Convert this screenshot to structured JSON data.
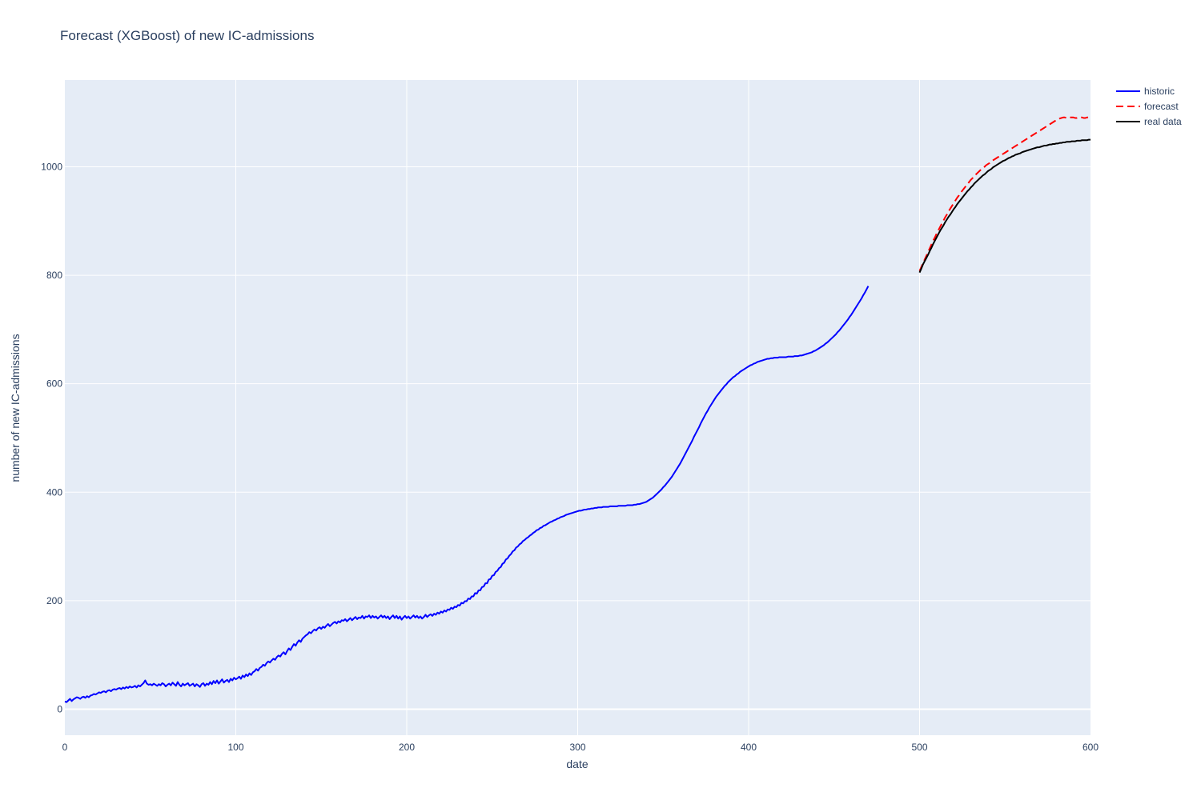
{
  "chart_data": {
    "type": "line",
    "title": "Forecast (XGBoost) of new IC-admissions",
    "xlabel": "date",
    "ylabel": "number of new IC-admissions",
    "xlim": [
      0,
      600
    ],
    "ylim": [
      -48,
      1160
    ],
    "x_ticks": [
      0,
      100,
      200,
      300,
      400,
      500,
      600
    ],
    "y_ticks": [
      0,
      200,
      400,
      600,
      800,
      1000
    ],
    "grid": true,
    "legend_position": "top-right",
    "colors": {
      "plot_bg": "#e5ecf6",
      "grid": "#ffffff",
      "text": "#2a3f5f"
    },
    "series": [
      {
        "name": "historic",
        "color": "#0000ff",
        "dash": "solid",
        "x_start": 0,
        "x_step": 1,
        "values": [
          14,
          13,
          16,
          19,
          15,
          18,
          20,
          22,
          21,
          19,
          22,
          23,
          21,
          24,
          22,
          25,
          26,
          28,
          27,
          29,
          31,
          30,
          32,
          33,
          31,
          34,
          35,
          33,
          36,
          37,
          36,
          38,
          39,
          37,
          40,
          38,
          41,
          39,
          42,
          40,
          41,
          43,
          40,
          44,
          42,
          45,
          48,
          53,
          47,
          45,
          46,
          44,
          47,
          45,
          43,
          46,
          44,
          48,
          46,
          42,
          45,
          47,
          44,
          49,
          46,
          43,
          50,
          45,
          42,
          47,
          44,
          46,
          48,
          43,
          45,
          47,
          42,
          46,
          44,
          41,
          46,
          48,
          43,
          47,
          45,
          50,
          46,
          52,
          48,
          53,
          47,
          51,
          55,
          49,
          52,
          54,
          50,
          56,
          53,
          58,
          55,
          57,
          60,
          56,
          62,
          59,
          64,
          61,
          66,
          63,
          68,
          70,
          74,
          71,
          76,
          78,
          82,
          80,
          85,
          88,
          86,
          90,
          93,
          91,
          96,
          99,
          97,
          102,
          105,
          101,
          107,
          112,
          109,
          115,
          120,
          117,
          123,
          127,
          124,
          130,
          133,
          136,
          138,
          142,
          140,
          144,
          147,
          145,
          149,
          151,
          148,
          152,
          150,
          154,
          157,
          153,
          156,
          159,
          161,
          158,
          162,
          160,
          164,
          163,
          166,
          162,
          165,
          168,
          164,
          167,
          170,
          166,
          169,
          168,
          172,
          167,
          171,
          170,
          173,
          168,
          172,
          169,
          171,
          167,
          170,
          173,
          169,
          172,
          168,
          171,
          166,
          170,
          173,
          168,
          172,
          167,
          171,
          165,
          169,
          172,
          168,
          171,
          167,
          170,
          173,
          169,
          172,
          168,
          171,
          167,
          170,
          174,
          170,
          173,
          175,
          172,
          176,
          174,
          178,
          176,
          180,
          178,
          182,
          180,
          184,
          183,
          187,
          185,
          189,
          188,
          192,
          191,
          196,
          195,
          199,
          199,
          204,
          203,
          208,
          208,
          214,
          213,
          219,
          219,
          225,
          226,
          232,
          232,
          239,
          240,
          246,
          247,
          253,
          255,
          260,
          262,
          268,
          270,
          276,
          278,
          283,
          286,
          291,
          293,
          298,
          300,
          304,
          306,
          310,
          312,
          315,
          317,
          320,
          322,
          325,
          327,
          330,
          331,
          334,
          335,
          338,
          339,
          341,
          343,
          345,
          346,
          348,
          349,
          351,
          352,
          354,
          355,
          356,
          358,
          359,
          360,
          361,
          362,
          363,
          364,
          365,
          366,
          366,
          367,
          368,
          368,
          369,
          369,
          370,
          370,
          371,
          371,
          372,
          372,
          372,
          373,
          373,
          373,
          373,
          374,
          374,
          374,
          374,
          374,
          375,
          375,
          375,
          375,
          375,
          376,
          376,
          376,
          376,
          377,
          377,
          378,
          378,
          379,
          380,
          381,
          382,
          384,
          386,
          388,
          390,
          393,
          396,
          399,
          402,
          405,
          409,
          412,
          416,
          420,
          424,
          428,
          433,
          438,
          443,
          448,
          453,
          459,
          465,
          471,
          477,
          483,
          489,
          495,
          502,
          508,
          514,
          520,
          527,
          533,
          539,
          545,
          550,
          556,
          561,
          566,
          571,
          576,
          580,
          584,
          588,
          592,
          596,
          599,
          603,
          606,
          609,
          612,
          614,
          617,
          619,
          622,
          624,
          626,
          628,
          630,
          632,
          634,
          635,
          637,
          638,
          640,
          641,
          642,
          643,
          644,
          645,
          646,
          646,
          647,
          647,
          648,
          648,
          648,
          649,
          649,
          649,
          649,
          649,
          650,
          650,
          650,
          650,
          651,
          651,
          651,
          652,
          652,
          653,
          654,
          655,
          656,
          657,
          658,
          660,
          661,
          663,
          665,
          667,
          669,
          671,
          674,
          676,
          679,
          682,
          685,
          688,
          691,
          695,
          698,
          702,
          706,
          710,
          714,
          718,
          723,
          727,
          732,
          737,
          742,
          747,
          752,
          757,
          763,
          768,
          774,
          780
        ]
      },
      {
        "name": "forecast",
        "color": "#ff0000",
        "dash": "dash",
        "x_start": 500,
        "x_step": 1,
        "values": [
          808,
          815,
          822,
          829,
          836,
          843,
          850,
          857,
          864,
          870,
          877,
          883,
          889,
          895,
          901,
          907,
          912,
          918,
          923,
          928,
          933,
          938,
          943,
          947,
          952,
          956,
          960,
          964,
          968,
          972,
          976,
          979,
          983,
          986,
          989,
          992,
          995,
          998,
          1000,
          1003,
          1005,
          1007,
          1010,
          1012,
          1014,
          1016,
          1018,
          1020,
          1022,
          1024,
          1026,
          1028,
          1030,
          1032,
          1034,
          1036,
          1038,
          1040,
          1042,
          1044,
          1046,
          1048,
          1050,
          1052,
          1054,
          1056,
          1058,
          1060,
          1062,
          1064,
          1066,
          1068,
          1070,
          1072,
          1074,
          1076,
          1078,
          1080,
          1082,
          1084,
          1086,
          1088,
          1089,
          1090,
          1091,
          1091,
          1090,
          1090,
          1091,
          1091,
          1091,
          1090,
          1090,
          1091,
          1091,
          1091,
          1090,
          1090,
          1091,
          1091,
          1091
        ]
      },
      {
        "name": "real data",
        "color": "#000000",
        "dash": "solid",
        "x_start": 500,
        "x_step": 1,
        "values": [
          805,
          812,
          820,
          826,
          832,
          838,
          845,
          851,
          858,
          864,
          870,
          876,
          882,
          887,
          892,
          898,
          903,
          908,
          912,
          917,
          922,
          926,
          931,
          935,
          939,
          943,
          947,
          951,
          955,
          958,
          962,
          965,
          969,
          972,
          975,
          978,
          981,
          984,
          986,
          989,
          992,
          994,
          996,
          999,
          1001,
          1003,
          1005,
          1007,
          1009,
          1011,
          1012,
          1014,
          1016,
          1017,
          1019,
          1020,
          1022,
          1023,
          1024,
          1025,
          1027,
          1028,
          1029,
          1030,
          1031,
          1032,
          1033,
          1034,
          1035,
          1036,
          1036,
          1037,
          1038,
          1039,
          1039,
          1040,
          1041,
          1041,
          1042,
          1042,
          1043,
          1043,
          1044,
          1044,
          1045,
          1045,
          1046,
          1046,
          1046,
          1047,
          1047,
          1047,
          1048,
          1048,
          1048,
          1049,
          1049,
          1049,
          1049,
          1050,
          1050
        ]
      }
    ]
  }
}
